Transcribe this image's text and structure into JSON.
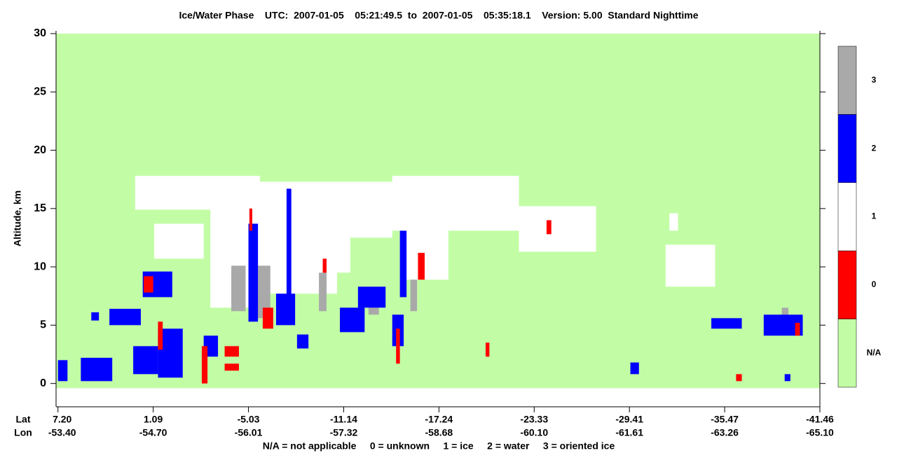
{
  "chart_data": {
    "type": "curtain",
    "title": "Ice/Water Phase    UTC:  2007-01-05    05:21:49.5  to  2007-01-05    05:35:18.1    Version: 5.00  Standard Nighttime",
    "y_label": "Altitude, km",
    "ylim": [
      -2,
      30
    ],
    "yticks": [
      0,
      5,
      10,
      15,
      20,
      25,
      30
    ],
    "xlim": [
      -0.02,
      8
    ],
    "data_ylim": [
      -0.4,
      30
    ],
    "x_row_labels": [
      "Lat",
      "Lon"
    ],
    "lat": [
      "7.20",
      "1.09",
      "-5.03",
      "-11.14",
      "-17.24",
      "-23.33",
      "-29.41",
      "-35.47",
      "-41.46"
    ],
    "lon": [
      "-53.40",
      "-54.70",
      "-56.01",
      "-57.32",
      "-58.68",
      "-60.10",
      "-61.61",
      "-63.26",
      "-65.10"
    ],
    "footnote": "N/A = not applicable     0 = unknown     1 = ice     2 = water     3 = oriented ice",
    "colorbar": {
      "labels": [
        "N/A",
        "0",
        "1",
        "2",
        "3"
      ],
      "colors": [
        "#c2fda5",
        "#ff0000",
        "#ffffff",
        "#0000ff",
        "#a9a9a9"
      ]
    },
    "cells": [
      {
        "x": [
          0.81,
          2.12
        ],
        "y": [
          14.9,
          17.8
        ],
        "phase": 1
      },
      {
        "x": [
          1.6,
          2.04
        ],
        "y": [
          6.5,
          14.9
        ],
        "phase": 1
      },
      {
        "x": [
          2.04,
          2.93
        ],
        "y": [
          7.7,
          17.3
        ],
        "phase": 1
      },
      {
        "x": [
          2.93,
          3.51
        ],
        "y": [
          12.5,
          17.3
        ],
        "phase": 1
      },
      {
        "x": [
          3.51,
          4.84
        ],
        "y": [
          13.1,
          17.8
        ],
        "phase": 1
      },
      {
        "x": [
          3.59,
          4.1
        ],
        "y": [
          8.9,
          13.1
        ],
        "phase": 1
      },
      {
        "x": [
          4.84,
          5.65
        ],
        "y": [
          11.3,
          15.2
        ],
        "phase": 1
      },
      {
        "x": [
          2.63,
          3.07
        ],
        "y": [
          9.5,
          13.1
        ],
        "phase": 1
      },
      {
        "x": [
          1.01,
          1.53
        ],
        "y": [
          10.7,
          13.7
        ],
        "phase": 1
      },
      {
        "x": [
          6.42,
          6.51
        ],
        "y": [
          13.1,
          14.6
        ],
        "phase": 1
      },
      {
        "x": [
          6.38,
          6.9
        ],
        "y": [
          8.3,
          11.9
        ],
        "phase": 1
      },
      {
        "x": [
          1.82,
          1.97
        ],
        "y": [
          6.2,
          10.1
        ],
        "phase": 3
      },
      {
        "x": [
          2.1,
          2.23
        ],
        "y": [
          5.6,
          10.1
        ],
        "phase": 3
      },
      {
        "x": [
          2.74,
          2.82
        ],
        "y": [
          6.2,
          9.5
        ],
        "phase": 3
      },
      {
        "x": [
          3.7,
          3.77
        ],
        "y": [
          6.2,
          8.9
        ],
        "phase": 3
      },
      {
        "x": [
          3.26,
          3.37
        ],
        "y": [
          5.9,
          6.5
        ],
        "phase": 3
      },
      {
        "x": [
          7.6,
          7.67
        ],
        "y": [
          4.7,
          6.5
        ],
        "phase": 3
      },
      {
        "x": [
          0.0,
          0.1
        ],
        "y": [
          0.2,
          2.0
        ],
        "phase": 2
      },
      {
        "x": [
          0.24,
          0.57
        ],
        "y": [
          0.2,
          2.2
        ],
        "phase": 2
      },
      {
        "x": [
          0.35,
          0.43
        ],
        "y": [
          5.4,
          6.1
        ],
        "phase": 2
      },
      {
        "x": [
          0.54,
          0.87
        ],
        "y": [
          5.0,
          6.4
        ],
        "phase": 2
      },
      {
        "x": [
          0.79,
          1.05
        ],
        "y": [
          0.8,
          3.2
        ],
        "phase": 2
      },
      {
        "x": [
          0.89,
          1.2
        ],
        "y": [
          7.4,
          9.6
        ],
        "phase": 2
      },
      {
        "x": [
          1.05,
          1.31
        ],
        "y": [
          0.5,
          4.7
        ],
        "phase": 2
      },
      {
        "x": [
          1.53,
          1.68
        ],
        "y": [
          2.3,
          4.1
        ],
        "phase": 2
      },
      {
        "x": [
          2.0,
          2.1
        ],
        "y": [
          5.3,
          13.7
        ],
        "phase": 2
      },
      {
        "x": [
          2.29,
          2.49
        ],
        "y": [
          5.0,
          7.7
        ],
        "phase": 2
      },
      {
        "x": [
          2.4,
          2.45
        ],
        "y": [
          6.5,
          16.7
        ],
        "phase": 2
      },
      {
        "x": [
          2.51,
          2.63
        ],
        "y": [
          3.0,
          4.2
        ],
        "phase": 2
      },
      {
        "x": [
          2.96,
          3.22
        ],
        "y": [
          4.4,
          6.5
        ],
        "phase": 2
      },
      {
        "x": [
          3.15,
          3.44
        ],
        "y": [
          6.5,
          8.3
        ],
        "phase": 2
      },
      {
        "x": [
          3.51,
          3.63
        ],
        "y": [
          3.2,
          5.9
        ],
        "phase": 2
      },
      {
        "x": [
          3.59,
          3.66
        ],
        "y": [
          7.4,
          13.1
        ],
        "phase": 2
      },
      {
        "x": [
          6.01,
          6.1
        ],
        "y": [
          0.8,
          1.8
        ],
        "phase": 2
      },
      {
        "x": [
          6.86,
          7.18
        ],
        "y": [
          4.7,
          5.6
        ],
        "phase": 2
      },
      {
        "x": [
          7.41,
          7.82
        ],
        "y": [
          4.1,
          5.9
        ],
        "phase": 2
      },
      {
        "x": [
          7.63,
          7.69
        ],
        "y": [
          0.2,
          0.8
        ],
        "phase": 2
      },
      {
        "x": [
          0.9,
          1.0
        ],
        "y": [
          7.8,
          9.2
        ],
        "phase": 0
      },
      {
        "x": [
          1.05,
          1.1
        ],
        "y": [
          2.9,
          5.3
        ],
        "phase": 0
      },
      {
        "x": [
          1.51,
          1.57
        ],
        "y": [
          0.0,
          3.2
        ],
        "phase": 0
      },
      {
        "x": [
          1.75,
          1.9
        ],
        "y": [
          2.3,
          3.2
        ],
        "phase": 0
      },
      {
        "x": [
          1.75,
          1.9
        ],
        "y": [
          1.1,
          1.7
        ],
        "phase": 0
      },
      {
        "x": [
          2.01,
          2.04
        ],
        "y": [
          13.1,
          15.0
        ],
        "phase": 0
      },
      {
        "x": [
          2.15,
          2.26
        ],
        "y": [
          4.7,
          6.5
        ],
        "phase": 0
      },
      {
        "x": [
          3.78,
          3.85
        ],
        "y": [
          8.9,
          11.2
        ],
        "phase": 0
      },
      {
        "x": [
          3.55,
          3.59
        ],
        "y": [
          1.7,
          4.7
        ],
        "phase": 0
      },
      {
        "x": [
          4.49,
          4.53
        ],
        "y": [
          2.3,
          3.5
        ],
        "phase": 0
      },
      {
        "x": [
          5.13,
          5.18
        ],
        "y": [
          12.8,
          14.0
        ],
        "phase": 0
      },
      {
        "x": [
          7.12,
          7.18
        ],
        "y": [
          0.2,
          0.8
        ],
        "phase": 0
      },
      {
        "x": [
          7.74,
          7.79
        ],
        "y": [
          4.1,
          5.2
        ],
        "phase": 0
      },
      {
        "x": [
          2.78,
          2.82
        ],
        "y": [
          9.5,
          10.7
        ],
        "phase": 0
      }
    ]
  }
}
